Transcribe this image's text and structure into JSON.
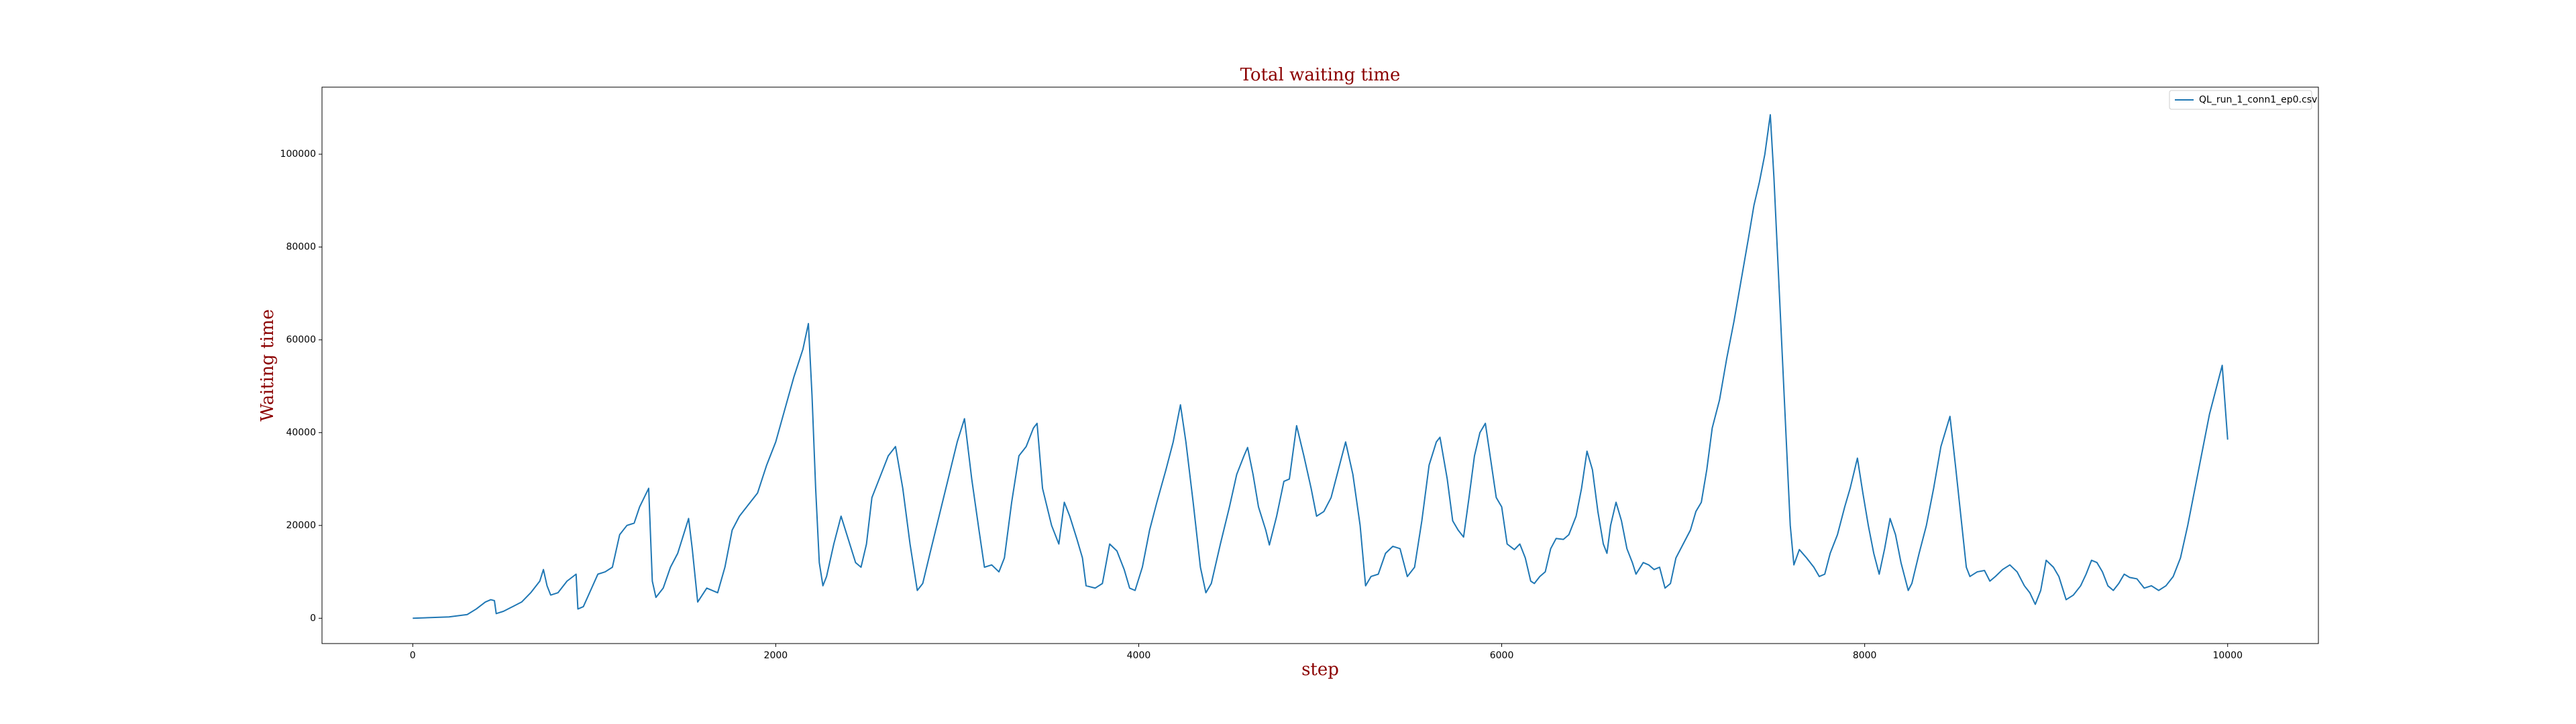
{
  "chart_data": {
    "type": "line",
    "title": "Total waiting time",
    "x_label": "step",
    "y_label": "Waiting time",
    "legend": "upper right",
    "xlim": [
      -500,
      10500
    ],
    "xticks": [
      0,
      2000,
      4000,
      6000,
      8000,
      10000
    ],
    "ylim": [
      -5450,
      114450
    ],
    "yticks": [
      0,
      20000,
      40000,
      60000,
      80000,
      100000
    ],
    "x": [
      0,
      200,
      300,
      350,
      400,
      430,
      450,
      460,
      500,
      550,
      600,
      650,
      700,
      720,
      740,
      760,
      800,
      850,
      900,
      910,
      940,
      980,
      1020,
      1060,
      1100,
      1140,
      1180,
      1220,
      1250,
      1300,
      1320,
      1340,
      1380,
      1420,
      1460,
      1520,
      1540,
      1570,
      1620,
      1680,
      1720,
      1760,
      1800,
      1850,
      1900,
      1950,
      2000,
      2050,
      2100,
      2150,
      2180,
      2200,
      2220,
      2240,
      2260,
      2280,
      2320,
      2360,
      2400,
      2440,
      2470,
      2500,
      2530,
      2580,
      2620,
      2660,
      2700,
      2740,
      2780,
      2810,
      2850,
      2900,
      2950,
      3000,
      3040,
      3080,
      3120,
      3150,
      3190,
      3230,
      3260,
      3300,
      3340,
      3380,
      3420,
      3440,
      3470,
      3520,
      3560,
      3590,
      3620,
      3660,
      3690,
      3710,
      3760,
      3800,
      3840,
      3880,
      3920,
      3950,
      3980,
      4020,
      4060,
      4100,
      4150,
      4190,
      4230,
      4260,
      4300,
      4340,
      4370,
      4400,
      4450,
      4500,
      4540,
      4580,
      4600,
      4630,
      4660,
      4700,
      4720,
      4760,
      4800,
      4830,
      4870,
      4910,
      4950,
      4980,
      5020,
      5060,
      5100,
      5140,
      5180,
      5220,
      5250,
      5280,
      5320,
      5360,
      5400,
      5440,
      5480,
      5520,
      5560,
      5600,
      5640,
      5660,
      5700,
      5730,
      5760,
      5790,
      5820,
      5850,
      5880,
      5910,
      5940,
      5970,
      6000,
      6030,
      6070,
      6100,
      6130,
      6160,
      6180,
      6210,
      6240,
      6270,
      6300,
      6340,
      6370,
      6410,
      6440,
      6470,
      6500,
      6530,
      6560,
      6580,
      6600,
      6630,
      6660,
      6690,
      6720,
      6740,
      6780,
      6810,
      6840,
      6870,
      6900,
      6930,
      6960,
      7000,
      7040,
      7070,
      7100,
      7130,
      7160,
      7200,
      7240,
      7280,
      7320,
      7360,
      7390,
      7420,
      7450,
      7480,
      7500,
      7530,
      7560,
      7590,
      7610,
      7640,
      7680,
      7720,
      7750,
      7780,
      7810,
      7850,
      7890,
      7920,
      7960,
      7990,
      8020,
      8050,
      8080,
      8110,
      8140,
      8170,
      8200,
      8240,
      8260,
      8300,
      8340,
      8380,
      8420,
      8470,
      8500,
      8530,
      8560,
      8580,
      8620,
      8660,
      8690,
      8720,
      8760,
      8800,
      8840,
      8880,
      8910,
      8940,
      8970,
      9000,
      9040,
      9070,
      9110,
      9150,
      9190,
      9220,
      9250,
      9280,
      9310,
      9340,
      9370,
      9400,
      9430,
      9460,
      9500,
      9540,
      9580,
      9620,
      9660,
      9700,
      9740,
      9780,
      9820,
      9860,
      9900,
      9940,
      9970,
      10000
    ],
    "series": [
      {
        "name": "QL_run_1_conn1_ep0.csv",
        "color": "#1f77b4",
        "values": [
          0,
          300,
          800,
          2000,
          3500,
          4000,
          3800,
          1000,
          1500,
          2500,
          3500,
          5500,
          8000,
          10500,
          7000,
          5000,
          5500,
          8000,
          9500,
          2000,
          2500,
          6000,
          9500,
          10000,
          11000,
          18000,
          20000,
          20500,
          24000,
          28000,
          8000,
          4500,
          6500,
          11000,
          14000,
          21500,
          15000,
          3500,
          6500,
          5500,
          11000,
          19000,
          22000,
          24500,
          27000,
          33000,
          38000,
          45000,
          52000,
          58000,
          63500,
          48000,
          28000,
          12000,
          7000,
          9000,
          16000,
          22000,
          17000,
          12000,
          11000,
          16000,
          26000,
          31000,
          35000,
          37000,
          28000,
          16000,
          6000,
          7500,
          14000,
          22000,
          30000,
          38000,
          43000,
          30000,
          19000,
          11000,
          11500,
          10000,
          13000,
          25000,
          35000,
          37000,
          41000,
          42000,
          28000,
          20000,
          16000,
          25000,
          22000,
          17000,
          13000,
          7000,
          6500,
          7500,
          16000,
          14500,
          10500,
          6500,
          6000,
          11000,
          19000,
          25000,
          32000,
          38000,
          46000,
          38000,
          25000,
          11000,
          5500,
          7500,
          16000,
          24000,
          31000,
          35000,
          36800,
          31000,
          24000,
          19000,
          15800,
          22000,
          29500,
          30000,
          41500,
          35000,
          28000,
          22000,
          23000,
          26000,
          32000,
          38000,
          31000,
          20000,
          7000,
          9000,
          9500,
          14000,
          15500,
          15000,
          9000,
          11000,
          21000,
          33000,
          38000,
          39000,
          30000,
          21000,
          19000,
          17500,
          26000,
          35000,
          40000,
          42000,
          34000,
          26000,
          24000,
          16000,
          14800,
          16000,
          13000,
          8000,
          7500,
          9000,
          10000,
          15000,
          17200,
          17000,
          18000,
          22000,
          28000,
          36000,
          32000,
          23000,
          16000,
          14000,
          20000,
          25000,
          21000,
          15000,
          12000,
          9500,
          12000,
          11500,
          10500,
          11000,
          6500,
          7500,
          13000,
          16000,
          19000,
          23000,
          25000,
          32000,
          41000,
          47000,
          56000,
          64000,
          73000,
          82000,
          89000,
          94000,
          100000,
          108500,
          95000,
          70000,
          45000,
          20000,
          11500,
          14800,
          13000,
          11000,
          9000,
          9500,
          14000,
          18000,
          24000,
          28000,
          34500,
          27000,
          20000,
          14000,
          9500,
          15000,
          21500,
          18000,
          12000,
          6000,
          7500,
          14000,
          20000,
          28000,
          37000,
          43500,
          33000,
          22000,
          11000,
          9000,
          10000,
          10300,
          8000,
          9000,
          10500,
          11500,
          10000,
          7000,
          5500,
          3000,
          6000,
          12500,
          11000,
          9000,
          4000,
          5000,
          7000,
          9500,
          12500,
          12000,
          10000,
          7000,
          6000,
          7500,
          9500,
          8800,
          8500,
          6500,
          7000,
          6000,
          7000,
          9000,
          13000,
          20000,
          28000,
          36000,
          44000,
          50000,
          54500,
          38500
        ]
      }
    ]
  }
}
